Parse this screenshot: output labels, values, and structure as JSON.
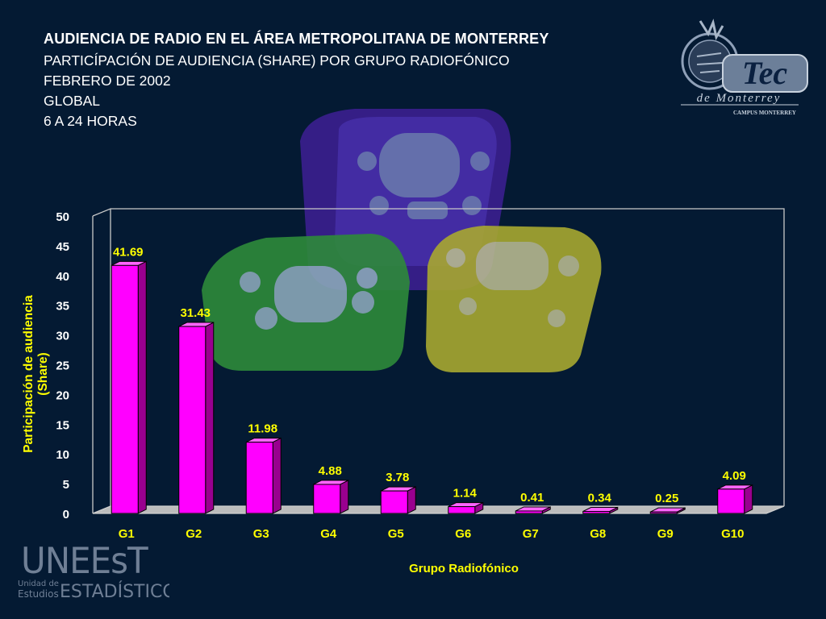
{
  "title": "AUDIENCIA DE RADIO EN EL ÁREA METROPOLITANA DE MONTERREY",
  "subtitles": [
    "PARTICÍPACIÓN DE AUDIENCIA (SHARE) POR GRUPO RADIOFÓNICO",
    "FEBRERO DE 2002",
    "GLOBAL",
    "6 A 24 HORAS"
  ],
  "logos": {
    "tec_main": "Tec",
    "tec_sub": "de Monterrey",
    "tec_campus": "CAMPUS MONTERREY",
    "uneest_main": "UNEEsT",
    "uneest_sub1": "Unidad de",
    "uneest_sub2": "Estudios",
    "uneest_sub3": "ESTADÍSTICOS"
  },
  "colors": {
    "background": "#041a33",
    "bar_front": "#ff00ff",
    "bar_side": "#99008f",
    "bar_top": "#ff66ff",
    "text_accent": "#ffff00",
    "text": "#ffffff"
  },
  "chart_data": {
    "type": "bar",
    "title": "AUDIENCIA DE RADIO EN EL ÁREA METROPOLITANA DE MONTERREY",
    "xlabel": "Grupo Radiofónico",
    "ylabel": "Participación de audiencia (Share)",
    "categories": [
      "G1",
      "G2",
      "G3",
      "G4",
      "G5",
      "G6",
      "G7",
      "G8",
      "G9",
      "G10"
    ],
    "values": [
      41.69,
      31.43,
      11.98,
      4.88,
      3.78,
      1.14,
      0.41,
      0.34,
      0.25,
      4.09
    ],
    "data_labels": [
      "41.69",
      "31.43",
      "11.98",
      "4.88",
      "3.78",
      "1.14",
      "0.41",
      "0.34",
      "0.25",
      "4.09"
    ],
    "yticks": [
      0,
      5,
      10,
      15,
      20,
      25,
      30,
      35,
      40,
      45,
      50
    ],
    "ylim": [
      0,
      50
    ],
    "grid": false,
    "legend": "none"
  }
}
